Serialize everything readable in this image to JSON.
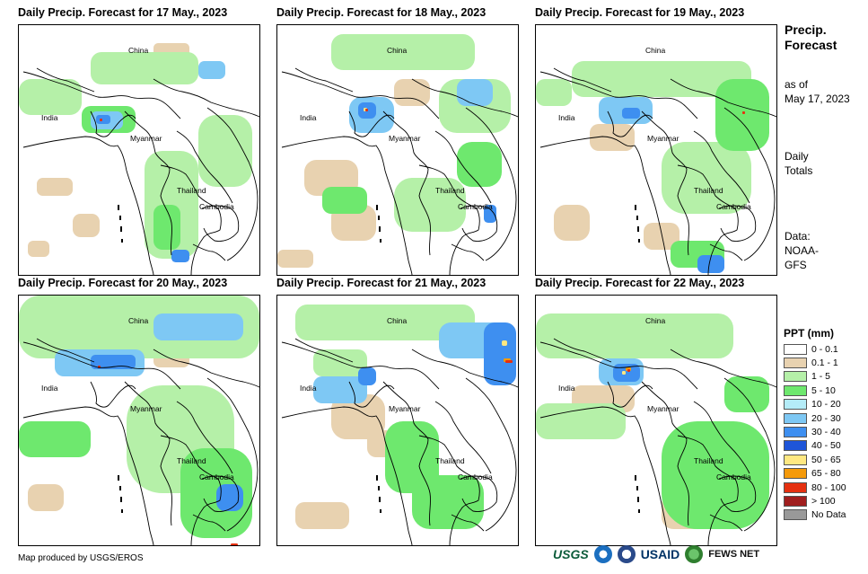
{
  "panels": [
    {
      "title": "Daily Precip. Forecast for 17 May., 2023"
    },
    {
      "title": "Daily Precip. Forecast for 18 May., 2023"
    },
    {
      "title": "Daily Precip. Forecast for 19 May., 2023"
    },
    {
      "title": "Daily Precip. Forecast for 20 May., 2023"
    },
    {
      "title": "Daily Precip. Forecast for 21 May., 2023"
    },
    {
      "title": "Daily Precip. Forecast for 22 May., 2023"
    }
  ],
  "place_labels": {
    "china": "China",
    "india": "India",
    "myanmar": "Myanmar",
    "thailand": "Thailand",
    "cambodia": "Cambodia"
  },
  "sidebar": {
    "title_line1": "Precip.",
    "title_line2": "Forecast",
    "asof_line1": "as of",
    "asof_line2": "May 17, 2023",
    "totals_line1": "Daily",
    "totals_line2": "Totals",
    "data_line1": "Data:",
    "data_line2": "NOAA-",
    "data_line3": "GFS"
  },
  "legend": {
    "title": "PPT (mm)",
    "items": [
      {
        "label": "0 - 0.1",
        "color": "#ffffff"
      },
      {
        "label": "0.1 - 1",
        "color": "#e8d2b0"
      },
      {
        "label": "1 - 5",
        "color": "#b5f0a8"
      },
      {
        "label": "5 - 10",
        "color": "#6ee86e"
      },
      {
        "label": "10 - 20",
        "color": "#b4ecf8"
      },
      {
        "label": "20 - 30",
        "color": "#7ec8f4"
      },
      {
        "label": "30 - 40",
        "color": "#3e8ff0"
      },
      {
        "label": "40 - 50",
        "color": "#1e55d8"
      },
      {
        "label": "50 - 65",
        "color": "#ffe882"
      },
      {
        "label": "65 - 80",
        "color": "#f59a0a"
      },
      {
        "label": "80 - 100",
        "color": "#e53010"
      },
      {
        "label": "> 100",
        "color": "#a01e1e"
      },
      {
        "label": "No Data",
        "color": "#999999"
      }
    ]
  },
  "footer": {
    "credit": "Map produced by USGS/EROS",
    "logo_usgs": "USGS",
    "logo_usaid": "USAID",
    "logo_fews": "FEWS NET"
  }
}
